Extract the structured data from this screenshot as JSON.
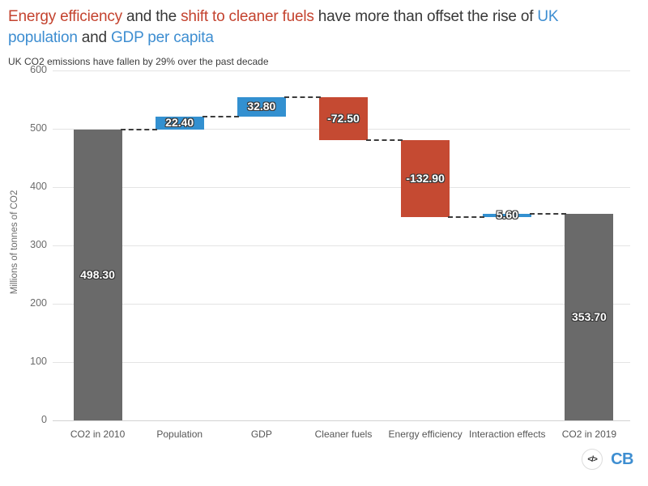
{
  "header": {
    "title_full": "Energy efficiency and the shift to cleaner fuels have more than offset the rise of UK population and GDP per capita",
    "title_lines": [
      [
        {
          "text": "Energy efficiency",
          "color": "red"
        },
        {
          "text": " and the ",
          "color": "dark"
        },
        {
          "text": "shift to cleaner fuels",
          "color": "red"
        },
        {
          "text": " have more than offset the rise of ",
          "color": "dark"
        },
        {
          "text": "UK",
          "color": "blue"
        }
      ],
      [
        {
          "text": "population",
          "color": "blue"
        },
        {
          "text": " and ",
          "color": "dark"
        },
        {
          "text": "GDP per capita",
          "color": "blue"
        }
      ]
    ],
    "subtitle": "UK CO2 emissions have fallen by 29% over the past decade"
  },
  "colors": {
    "red": "#c4432f",
    "blue": "#3e8ed1",
    "dark": "#383838"
  },
  "chart_data": {
    "type": "bar",
    "subtype": "waterfall",
    "categories": [
      "CO2 in 2010",
      "Population",
      "GDP",
      "Cleaner fuels",
      "Energy efficiency",
      "Interaction effects",
      "CO2 in 2019"
    ],
    "values": [
      498.3,
      22.4,
      32.8,
      -72.5,
      -132.9,
      5.6,
      353.7
    ],
    "bar_kinds": [
      "total",
      "increase",
      "increase",
      "decrease",
      "decrease",
      "increase",
      "total"
    ],
    "value_labels": [
      "498.30",
      "22.40",
      "32.80",
      "-72.50",
      "-132.90",
      "5.60",
      "353.70"
    ],
    "cumulative_after": [
      498.3,
      520.7,
      553.5,
      481.0,
      348.1,
      353.7,
      353.7
    ],
    "ylabel": "Millions of tonnes of CO2",
    "xlabel": "",
    "ylim": [
      0,
      600
    ],
    "yticks": [
      0,
      100,
      200,
      300,
      400,
      500,
      600
    ],
    "grid": true,
    "legend": false,
    "colors": {
      "total": "#6a6a6a",
      "increase": "#3390d0",
      "decrease": "#c54a32"
    }
  },
  "footer": {
    "icon_glyph": "</>",
    "logo_text": "CB"
  }
}
